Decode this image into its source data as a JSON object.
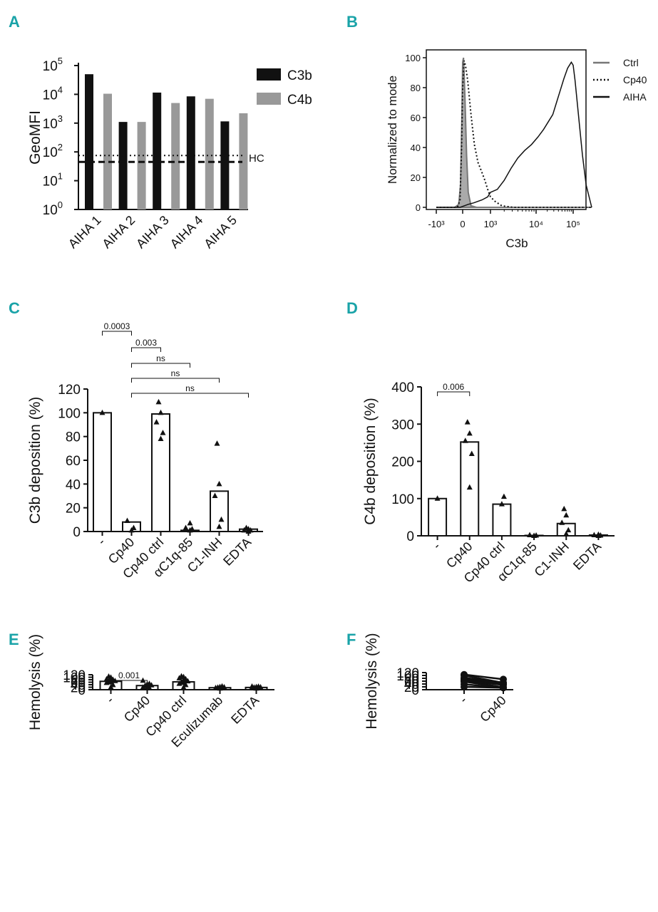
{
  "colors": {
    "panel_label": "#1aa3a8",
    "c3b": "#111111",
    "c4b": "#999999",
    "ctrl_line": "#777777",
    "ctrl_fill": "#aaaaaa"
  },
  "chart_data": [
    {
      "panel": "A",
      "type": "bar",
      "yscale": "log",
      "categories": [
        "AIHA 1",
        "AIHA 2",
        "AIHA 3",
        "AIHA 4",
        "AIHA 5"
      ],
      "series": [
        {
          "name": "C3b",
          "values": [
            50000,
            1100,
            11500,
            8500,
            1150
          ]
        },
        {
          "name": "C4b",
          "values": [
            10500,
            1100,
            5000,
            7000,
            2200
          ]
        }
      ],
      "ylabel": "GeoMFI",
      "yticks": [
        {
          "value": 1,
          "base": "10",
          "exp": "0"
        },
        {
          "value": 10,
          "base": "10",
          "exp": "1"
        },
        {
          "value": 100,
          "base": "10",
          "exp": "2"
        },
        {
          "value": 1000,
          "base": "10",
          "exp": "3"
        },
        {
          "value": 10000,
          "base": "10",
          "exp": "4"
        },
        {
          "value": 100000,
          "base": "10",
          "exp": "5"
        }
      ],
      "ylim": [
        1,
        100000
      ],
      "reference_lines": [
        {
          "label": "HC",
          "values": [
            75,
            45
          ]
        }
      ],
      "legend": [
        "C3b",
        "C4b"
      ]
    },
    {
      "panel": "B",
      "type": "line",
      "title": "",
      "xlabel": "C3b",
      "ylabel": "Normalized to mode",
      "xticks": [
        "-10³",
        "0",
        "10³",
        "10⁴",
        "10⁵"
      ],
      "yticks": [
        0,
        20,
        40,
        60,
        80,
        100
      ],
      "ylim": [
        0,
        100
      ],
      "series": [
        {
          "name": "Ctrl",
          "style": "solid-grey-filled",
          "points": [
            [
              -1.0,
              0
            ],
            [
              -0.3,
              0
            ],
            [
              -0.15,
              2
            ],
            [
              -0.08,
              15
            ],
            [
              -0.03,
              60
            ],
            [
              0,
              97
            ],
            [
              0.03,
              100
            ],
            [
              0.08,
              75
            ],
            [
              0.14,
              35
            ],
            [
              0.2,
              10
            ],
            [
              0.3,
              1
            ],
            [
              0.5,
              0
            ],
            [
              3.5,
              0
            ]
          ]
        },
        {
          "name": "Cp40",
          "style": "dotted",
          "points": [
            [
              -1.0,
              0
            ],
            [
              -0.2,
              0
            ],
            [
              -0.1,
              5
            ],
            [
              -0.04,
              40
            ],
            [
              0,
              80
            ],
            [
              0.05,
              98
            ],
            [
              0.1,
              95
            ],
            [
              0.18,
              85
            ],
            [
              0.3,
              62
            ],
            [
              0.42,
              42
            ],
            [
              0.55,
              30
            ],
            [
              0.68,
              24
            ],
            [
              0.8,
              18
            ],
            [
              0.9,
              12
            ],
            [
              1.0,
              7
            ],
            [
              1.1,
              4
            ],
            [
              1.25,
              1
            ],
            [
              1.5,
              0
            ],
            [
              3.5,
              0
            ]
          ]
        },
        {
          "name": "AIHA",
          "style": "solid",
          "points": [
            [
              -1.0,
              0
            ],
            [
              -0.1,
              0
            ],
            [
              0.05,
              1
            ],
            [
              0.2,
              2
            ],
            [
              0.4,
              3
            ],
            [
              0.7,
              5
            ],
            [
              0.9,
              7
            ],
            [
              1.0,
              10
            ],
            [
              1.15,
              12
            ],
            [
              1.3,
              18
            ],
            [
              1.45,
              26
            ],
            [
              1.6,
              33
            ],
            [
              1.75,
              38
            ],
            [
              1.9,
              42
            ],
            [
              2.05,
              47
            ],
            [
              2.2,
              52
            ],
            [
              2.35,
              58
            ],
            [
              2.45,
              62
            ],
            [
              2.55,
              70
            ],
            [
              2.65,
              78
            ],
            [
              2.75,
              86
            ],
            [
              2.85,
              93
            ],
            [
              2.95,
              97
            ],
            [
              3.0,
              95
            ],
            [
              3.05,
              85
            ],
            [
              3.15,
              60
            ],
            [
              3.25,
              35
            ],
            [
              3.35,
              15
            ],
            [
              3.45,
              5
            ],
            [
              3.5,
              0
            ]
          ]
        }
      ],
      "legend": [
        "Ctrl",
        "Cp40",
        "AIHA"
      ]
    },
    {
      "panel": "C",
      "type": "bar",
      "categories": [
        "-",
        "Cp40",
        "Cp40 ctrl",
        "αC1q-85",
        "C1-INH",
        "EDTA"
      ],
      "values": [
        100,
        8,
        99,
        1,
        34,
        2
      ],
      "points": [
        [
          100
        ],
        [
          1,
          3,
          9
        ],
        [
          78,
          83,
          92,
          100,
          109
        ],
        [
          1,
          2,
          3,
          7
        ],
        [
          4,
          10,
          30,
          40,
          74
        ],
        [
          0,
          1,
          1,
          2,
          3
        ]
      ],
      "ylabel": "C3b deposition (%)",
      "yticks": [
        0,
        20,
        40,
        60,
        80,
        100,
        120
      ],
      "ylim": [
        0,
        120
      ],
      "comparisons": [
        {
          "from": 0,
          "to": 1,
          "label": "0.0003"
        },
        {
          "from": 1,
          "to": 2,
          "label": "0.003"
        },
        {
          "from": 1,
          "to": 3,
          "label": "ns"
        },
        {
          "from": 1,
          "to": 4,
          "label": "ns"
        },
        {
          "from": 1,
          "to": 5,
          "label": "ns"
        }
      ]
    },
    {
      "panel": "D",
      "type": "bar",
      "categories": [
        "-",
        "Cp40",
        "Cp40 ctrl",
        "αC1q-85",
        "C1-INH",
        "EDTA"
      ],
      "values": [
        100,
        252,
        85,
        1,
        33,
        2
      ],
      "points": [
        [
          100
        ],
        [
          130,
          220,
          255,
          275,
          305
        ],
        [
          85,
          105
        ],
        [
          0,
          1,
          2
        ],
        [
          5,
          15,
          35,
          55,
          72
        ],
        [
          0,
          1,
          2,
          3
        ]
      ],
      "ylabel": "C4b deposition (%)",
      "yticks": [
        0,
        100,
        200,
        300,
        400
      ],
      "ylim": [
        0,
        400
      ],
      "comparisons": [
        {
          "from": 0,
          "to": 1,
          "label": "0.006"
        }
      ]
    },
    {
      "panel": "E",
      "type": "bar",
      "categories": [
        "-",
        "Cp40",
        "Cp40 ctrl",
        "Eculizumab",
        "EDTA"
      ],
      "values": [
        67,
        33,
        63,
        16,
        18
      ],
      "points": [
        [
          20,
          38,
          55,
          60,
          65,
          70,
          75,
          80,
          84,
          98,
          106
        ],
        [
          12,
          15,
          18,
          22,
          32,
          36,
          44,
          48,
          73
        ],
        [
          18,
          38,
          48,
          56,
          62,
          68,
          78,
          85,
          92,
          102,
          108
        ],
        [
          10,
          12,
          14,
          16,
          18,
          20,
          22,
          27
        ],
        [
          10,
          12,
          14,
          16,
          18,
          20,
          22,
          25,
          26
        ]
      ],
      "ylabel": "Hemolysis (%)",
      "yticks": [
        0,
        20,
        40,
        60,
        80,
        100,
        120
      ],
      "ylim": [
        0,
        120
      ],
      "comparisons": [
        {
          "from": 0,
          "to": 1,
          "label": "0.001"
        }
      ]
    },
    {
      "panel": "F",
      "type": "line",
      "subtype": "paired",
      "categories": [
        "-",
        "Cp40"
      ],
      "pairs": [
        [
          106,
          73
        ],
        [
          100,
          48
        ],
        [
          84,
          49
        ],
        [
          79,
          43
        ],
        [
          72,
          42
        ],
        [
          69,
          36
        ],
        [
          64,
          33
        ],
        [
          60,
          17
        ],
        [
          57,
          15
        ],
        [
          38,
          13
        ],
        [
          20,
          14
        ]
      ],
      "ylabel": "Hemolysis (%)",
      "yticks": [
        0,
        20,
        40,
        60,
        80,
        100,
        120
      ],
      "ylim": [
        0,
        120
      ]
    }
  ]
}
